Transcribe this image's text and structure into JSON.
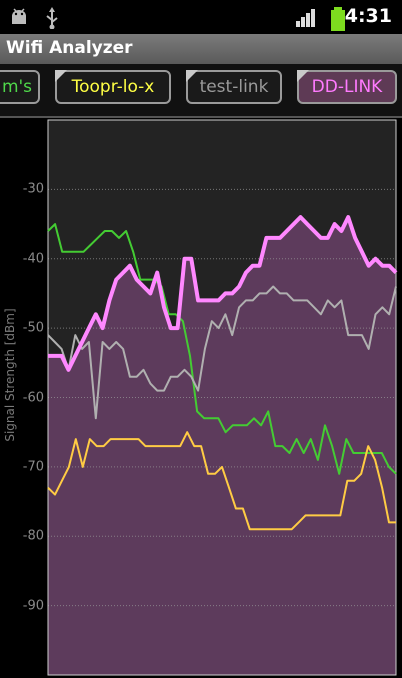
{
  "statusbar": {
    "icons": [
      "android-icon",
      "usb-icon",
      "signal-icon",
      "battery-icon"
    ],
    "time": "4:31"
  },
  "app": {
    "title": "Wifi Analyzer"
  },
  "tabs": [
    {
      "label": "m's",
      "color": "#4fd84a"
    },
    {
      "label": "Toopr-lo-x",
      "color": "#ffff44"
    },
    {
      "label": "test-link",
      "color": "#9a9a9a"
    },
    {
      "label": "DD-LINK",
      "color": "#ff7aff"
    }
  ],
  "chart_data": {
    "type": "line",
    "ylabel": "Signal Strength [dBm]",
    "ylim": [
      -100,
      -20
    ],
    "yticks": [
      "-30",
      "-40",
      "-50",
      "-60",
      "-70",
      "-80",
      "-90"
    ],
    "grid": true,
    "series": [
      {
        "name": "m's",
        "color": "#44cc33",
        "fill": false,
        "width": 2,
        "values": [
          -36,
          -35,
          -39,
          -39,
          -39,
          -39,
          -38,
          -37,
          -36,
          -36,
          -37,
          -36,
          -39,
          -43,
          -43,
          -43,
          -44,
          -48,
          -48,
          -49,
          -54,
          -62,
          -63,
          -63,
          -63,
          -65,
          -64,
          -64,
          -64,
          -63,
          -64,
          -62,
          -67,
          -67,
          -68,
          -66,
          -68,
          -66,
          -69,
          -64,
          -67,
          -71,
          -66,
          -68,
          -68,
          -68,
          -68,
          -68,
          -70,
          -71
        ]
      },
      {
        "name": "Toopr-lo-x",
        "color": "#ffcc44",
        "fill": false,
        "width": 2,
        "values": [
          -73,
          -74,
          -72,
          -70,
          -66,
          -70,
          -66,
          -67,
          -67,
          -66,
          -66,
          -66,
          -66,
          -66,
          -67,
          -67,
          -67,
          -67,
          -67,
          -67,
          -65,
          -67,
          -67,
          -71,
          -71,
          -70,
          -73,
          -76,
          -76,
          -79,
          -79,
          -79,
          -79,
          -79,
          -79,
          -79,
          -78,
          -77,
          -77,
          -77,
          -77,
          -77,
          -77,
          -72,
          -72,
          -71,
          -67,
          -69,
          -73,
          -78,
          -78
        ]
      },
      {
        "name": "test-link",
        "color": "#b0b0b0",
        "fill": false,
        "width": 2,
        "values": [
          -51,
          -52,
          -53,
          -56,
          -51,
          -53,
          -52,
          -63,
          -52,
          -53,
          -52,
          -53,
          -57,
          -57,
          -56,
          -58,
          -59,
          -59,
          -57,
          -57,
          -56,
          -57,
          -59,
          -53,
          -49,
          -50,
          -48,
          -51,
          -47,
          -46,
          -46,
          -45,
          -45,
          -44,
          -45,
          -45,
          -46,
          -46,
          -46,
          -47,
          -48,
          -46,
          -47,
          -46,
          -51,
          -51,
          -51,
          -53,
          -48,
          -47,
          -48,
          -44
        ]
      },
      {
        "name": "DD-LINK",
        "color": "#ff88ff",
        "fill": true,
        "width": 4,
        "values": [
          -54,
          -54,
          -54,
          -56,
          -54,
          -52,
          -50,
          -48,
          -50,
          -46,
          -43,
          -42,
          -41,
          -43,
          -44,
          -45,
          -42,
          -47,
          -50,
          -50,
          -40,
          -40,
          -46,
          -46,
          -46,
          -46,
          -45,
          -45,
          -44,
          -42,
          -41,
          -41,
          -37,
          -37,
          -37,
          -36,
          -35,
          -34,
          -35,
          -36,
          -37,
          -37,
          -35,
          -36,
          -34,
          -37,
          -39,
          -41,
          -40,
          -41,
          -41,
          -42
        ]
      }
    ]
  }
}
